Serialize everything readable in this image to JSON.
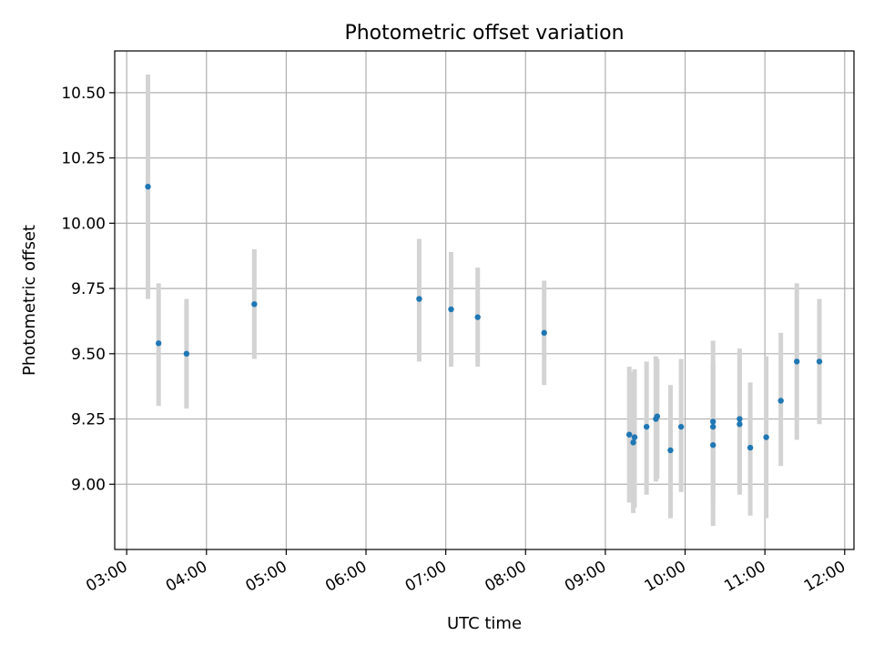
{
  "chart_data": {
    "type": "scatter",
    "title": "Photometric offset variation",
    "xlabel": "UTC time",
    "ylabel": "Photometric offset",
    "x_tick_labels": [
      "03:00",
      "04:00",
      "05:00",
      "06:00",
      "07:00",
      "08:00",
      "09:00",
      "10:00",
      "11:00",
      "12:00"
    ],
    "y_tick_labels": [
      "9.00",
      "9.25",
      "9.50",
      "9.75",
      "10.00",
      "10.25",
      "10.50"
    ],
    "xlim": [
      "02:51",
      "12:07"
    ],
    "ylim": [
      8.75,
      10.66
    ],
    "grid": true,
    "point_color": "#1f77b4",
    "errorbar_color": "#d3d3d3",
    "series": [
      {
        "points": [
          {
            "x": "03:16",
            "y": 10.14,
            "lo": 9.71,
            "hi": 10.57
          },
          {
            "x": "03:24",
            "y": 9.54,
            "lo": 9.3,
            "hi": 9.77
          },
          {
            "x": "03:45",
            "y": 9.5,
            "lo": 9.29,
            "hi": 9.71
          },
          {
            "x": "04:36",
            "y": 9.69,
            "lo": 9.48,
            "hi": 9.9
          },
          {
            "x": "06:40",
            "y": 9.71,
            "lo": 9.47,
            "hi": 9.94
          },
          {
            "x": "07:04",
            "y": 9.67,
            "lo": 9.45,
            "hi": 9.89
          },
          {
            "x": "07:24",
            "y": 9.64,
            "lo": 9.45,
            "hi": 9.83
          },
          {
            "x": "08:14",
            "y": 9.58,
            "lo": 9.38,
            "hi": 9.78
          },
          {
            "x": "09:18",
            "y": 9.19,
            "lo": 8.93,
            "hi": 9.45
          },
          {
            "x": "09:21",
            "y": 9.16,
            "lo": 8.89,
            "hi": 9.43
          },
          {
            "x": "09:22",
            "y": 9.18,
            "lo": 8.91,
            "hi": 9.44
          },
          {
            "x": "09:31",
            "y": 9.22,
            "lo": 8.96,
            "hi": 9.47
          },
          {
            "x": "09:38",
            "y": 9.25,
            "lo": 9.01,
            "hi": 9.49
          },
          {
            "x": "09:39",
            "y": 9.26,
            "lo": 9.02,
            "hi": 9.48
          },
          {
            "x": "09:49",
            "y": 9.13,
            "lo": 8.87,
            "hi": 9.38
          },
          {
            "x": "09:57",
            "y": 9.22,
            "lo": 8.97,
            "hi": 9.48
          },
          {
            "x": "10:21",
            "y": 9.24,
            "lo": 8.93,
            "hi": 9.55
          },
          {
            "x": "10:21",
            "y": 9.22,
            "lo": 8.97,
            "hi": 9.47
          },
          {
            "x": "10:21",
            "y": 9.15,
            "lo": 8.84,
            "hi": 9.46
          },
          {
            "x": "10:41",
            "y": 9.25,
            "lo": 8.96,
            "hi": 9.51
          },
          {
            "x": "10:41",
            "y": 9.23,
            "lo": 8.97,
            "hi": 9.52
          },
          {
            "x": "10:49",
            "y": 9.14,
            "lo": 8.88,
            "hi": 9.39
          },
          {
            "x": "11:01",
            "y": 9.18,
            "lo": 8.87,
            "hi": 9.49
          },
          {
            "x": "11:12",
            "y": 9.32,
            "lo": 9.07,
            "hi": 9.58
          },
          {
            "x": "11:24",
            "y": 9.47,
            "lo": 9.17,
            "hi": 9.77
          },
          {
            "x": "11:41",
            "y": 9.47,
            "lo": 9.23,
            "hi": 9.71
          }
        ]
      }
    ]
  }
}
